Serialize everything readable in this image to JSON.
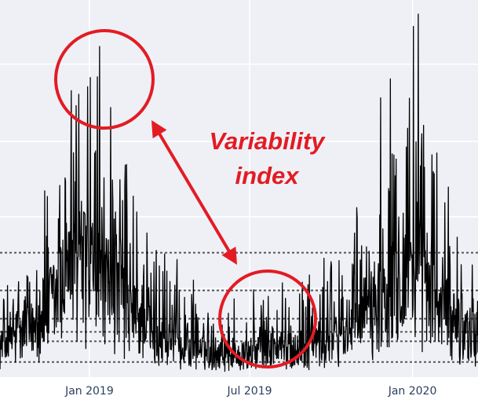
{
  "chart_data": {
    "type": "line",
    "title": "",
    "xlabel": "",
    "ylabel": "",
    "x_range": [
      "2018-09-22",
      "2020-03-15"
    ],
    "ylim": [
      0,
      1
    ],
    "x_ticks": [
      {
        "label": "Jan 2019",
        "date": "2019-01-01"
      },
      {
        "label": "Jul 2019",
        "date": "2019-07-01"
      },
      {
        "label": "Jan 2020",
        "date": "2020-01-01"
      }
    ],
    "y_gridlines": [
      0.235,
      0.425,
      0.625,
      0.83
    ],
    "horizontal_reference_lines": [
      0.04,
      0.095,
      0.12,
      0.155,
      0.23,
      0.33
    ],
    "grid": true,
    "background_color": "#eef0f6",
    "line_color": "#000000",
    "reference_line_color": "#555555",
    "series": [
      {
        "values_desc": "",
        "keyframes": [
          [
            "2018-09-22",
            0.11
          ],
          [
            "2018-10-10",
            0.14
          ],
          [
            "2018-10-25",
            0.18
          ],
          [
            "2018-11-10",
            0.24
          ],
          [
            "2018-11-25",
            0.31
          ],
          [
            "2018-12-10",
            0.38
          ],
          [
            "2018-12-25",
            0.42
          ],
          [
            "2019-01-10",
            0.38
          ],
          [
            "2019-01-25",
            0.33
          ],
          [
            "2019-02-10",
            0.27
          ],
          [
            "2019-02-25",
            0.22
          ],
          [
            "2019-03-15",
            0.17
          ],
          [
            "2019-04-01",
            0.13
          ],
          [
            "2019-04-20",
            0.115
          ],
          [
            "2019-05-10",
            0.1
          ],
          [
            "2019-06-01",
            0.085
          ],
          [
            "2019-06-20",
            0.085
          ],
          [
            "2019-07-10",
            0.1
          ],
          [
            "2019-07-30",
            0.11
          ],
          [
            "2019-08-15",
            0.11
          ],
          [
            "2019-09-01",
            0.11
          ],
          [
            "2019-09-20",
            0.12
          ],
          [
            "2019-10-10",
            0.15
          ],
          [
            "2019-10-25",
            0.17
          ],
          [
            "2019-11-10",
            0.23
          ],
          [
            "2019-11-25",
            0.29
          ],
          [
            "2019-12-10",
            0.36
          ],
          [
            "2019-12-25",
            0.42
          ],
          [
            "2020-01-08",
            0.4
          ],
          [
            "2020-01-20",
            0.33
          ],
          [
            "2020-02-05",
            0.25
          ],
          [
            "2020-02-20",
            0.2
          ],
          [
            "2020-03-15",
            0.16
          ]
        ],
        "spikes": [
          [
            "2018-12-17",
            0.72
          ],
          [
            "2018-12-20",
            0.75
          ],
          [
            "2018-12-30",
            0.77
          ],
          [
            "2019-01-08",
            0.6
          ],
          [
            "2018-12-05",
            0.52
          ],
          [
            "2018-11-27",
            0.42
          ],
          [
            "2019-01-15",
            0.45
          ],
          [
            "2019-02-05",
            0.37
          ],
          [
            "2019-03-25",
            0.28
          ],
          [
            "2019-05-15",
            0.17
          ],
          [
            "2019-07-14",
            0.19
          ],
          [
            "2019-08-07",
            0.25
          ],
          [
            "2019-08-31",
            0.17
          ],
          [
            "2019-10-25",
            0.3
          ],
          [
            "2019-11-25",
            0.43
          ],
          [
            "2019-12-05",
            0.5
          ],
          [
            "2019-12-25",
            0.61
          ],
          [
            "2020-01-02",
            0.93
          ],
          [
            "2020-01-10",
            0.56
          ],
          [
            "2020-02-10",
            0.28
          ]
        ]
      }
    ],
    "annotations": [
      {
        "text": "Variability",
        "color": "#e31b23"
      },
      {
        "text": "index",
        "color": "#e31b23"
      }
    ]
  }
}
